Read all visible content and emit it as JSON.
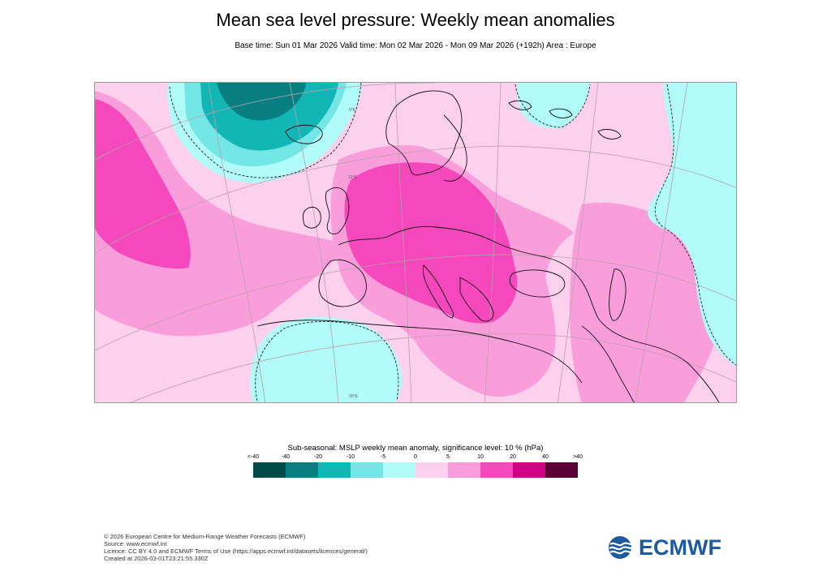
{
  "header": {
    "title": "Mean sea level pressure: Weekly mean anomalies",
    "subtitle": "Base time: Sun 01 Mar 2026 Valid time: Mon 02 Mar 2026 - Mon 09 Mar 2026 (+192h) Area : Europe"
  },
  "map": {
    "region": "Europe",
    "meridian_labels": [
      "0°E",
      "10°E",
      "20°E"
    ]
  },
  "legend": {
    "title": "Sub-seasonal: MSLP weekly mean anomaly, significance level: 10 % (hPa)",
    "ticks": [
      "<-40",
      "-40",
      "-20",
      "-10",
      "-5",
      "0",
      "5",
      "10",
      "20",
      "40",
      ">40"
    ],
    "colors": [
      "#024b4b",
      "#077f80",
      "#12b6b4",
      "#74e6e6",
      "#b2fbfb",
      "#fdd0ee",
      "#fa9edb",
      "#f548bc",
      "#cf0084",
      "#5a0036"
    ]
  },
  "footer": {
    "lines": [
      "© 2026 European Centre for Medium-Range Weather Forecasts (ECMWF)",
      "Source: www.ecmwf.int",
      "Licence: CC BY 4.0 and ECMWF Terms of Use (https://apps.ecmwf.int/datasets/licences/general/)",
      "Created at 2026-03-01T23:21:55.330Z"
    ]
  },
  "logo": {
    "text": "ECMWF",
    "color": "#1d5aa0"
  }
}
